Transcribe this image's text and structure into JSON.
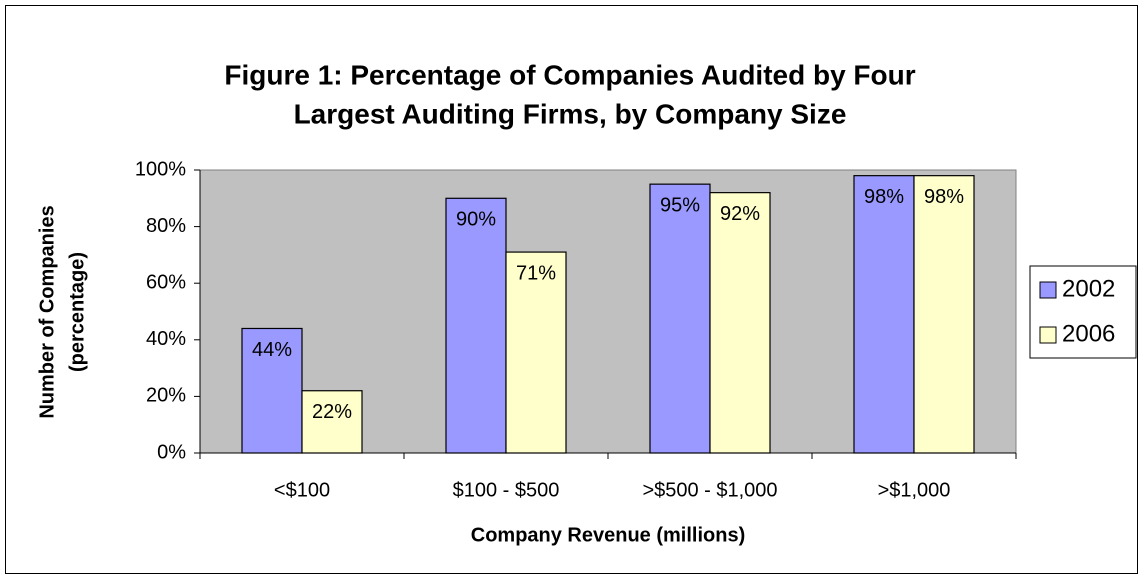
{
  "chart_data": {
    "type": "bar",
    "title": [
      "Figure 1: Percentage of Companies Audited by Four",
      "Largest Auditing Firms, by Company Size"
    ],
    "xlabel": "Company Revenue (millions)",
    "ylabel": [
      "Number of Companies",
      "(percentage)"
    ],
    "categories": [
      "<$100",
      "$100 - $500",
      ">$500 - $1,000",
      ">$1,000"
    ],
    "series": [
      {
        "name": "2002",
        "color": "#9999ff",
        "values": [
          44,
          90,
          95,
          98
        ],
        "value_labels": [
          "44%",
          "90%",
          "95%",
          "98%"
        ]
      },
      {
        "name": "2006",
        "color": "#ffffcc",
        "values": [
          22,
          71,
          92,
          98
        ],
        "value_labels": [
          "22%",
          "71%",
          "92%",
          "98%"
        ]
      }
    ],
    "ylim": [
      0,
      100
    ],
    "yticks": [
      {
        "value": 0,
        "label": "0%"
      },
      {
        "value": 20,
        "label": "20%"
      },
      {
        "value": 40,
        "label": "40%"
      },
      {
        "value": 60,
        "label": "60%"
      },
      {
        "value": 80,
        "label": "80%"
      },
      {
        "value": 100,
        "label": "100%"
      }
    ],
    "plot_background": "#c0c0c0",
    "legend": "right"
  }
}
